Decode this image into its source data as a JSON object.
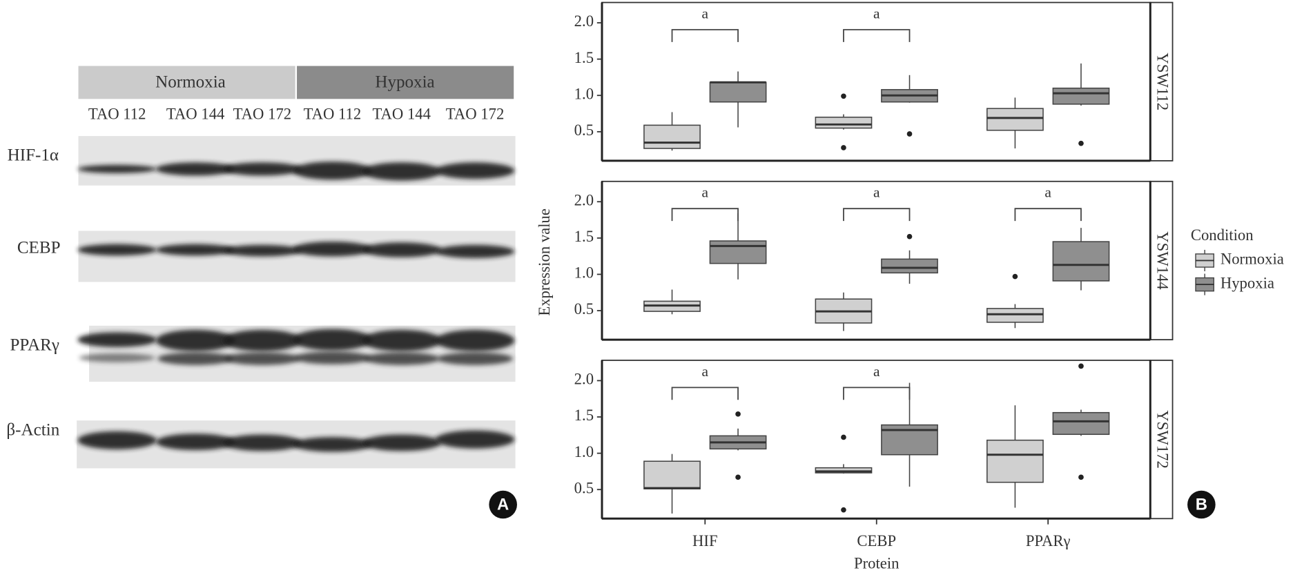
{
  "blot": {
    "groups": [
      "Normoxia",
      "Hypoxia"
    ],
    "lanes": [
      "TAO 112",
      "TAO 144",
      "TAO 172",
      "TAO 112",
      "TAO 144",
      "TAO 172"
    ],
    "proteins": [
      "HIF-1α",
      "CEBP",
      "PPARγ",
      "β-Actin"
    ],
    "panel_label": "A"
  },
  "chart_data": {
    "type": "box",
    "ylabel": "Expression value",
    "xlabel": "Protein",
    "categories": [
      "HIF",
      "CEBP",
      "PPARγ"
    ],
    "legend_title": "Condition",
    "series": [
      {
        "name": "Normoxia",
        "color": "#d0d0d0"
      },
      {
        "name": "Hypoxia",
        "color": "#8f8f8f"
      }
    ],
    "ylim": [
      0.1,
      2.28
    ],
    "yticks": [
      0.5,
      {
        "value": 1,
        "label": "1.0"
      },
      1.5,
      {
        "value": 2,
        "label": "2.0"
      }
    ],
    "panel_label": "B",
    "facets": [
      {
        "label": "YSW112",
        "significance": [
          "a",
          "a",
          null
        ],
        "boxes": [
          [
            {
              "min": 0.24,
              "q1": 0.27,
              "median": 0.35,
              "q3": 0.59,
              "max": 0.77,
              "outliers": []
            },
            {
              "min": 0.56,
              "q1": 0.91,
              "median": 1.18,
              "q3": 1.18,
              "max": 1.33,
              "outliers": []
            }
          ],
          [
            {
              "min": 0.53,
              "q1": 0.55,
              "median": 0.6,
              "q3": 0.7,
              "max": 0.74,
              "outliers": [
                0.99,
                0.28
              ]
            },
            {
              "min": 0.9,
              "q1": 0.91,
              "median": 1.0,
              "q3": 1.08,
              "max": 1.28,
              "outliers": [
                0.47
              ]
            }
          ],
          [
            {
              "min": 0.27,
              "q1": 0.52,
              "median": 0.69,
              "q3": 0.82,
              "max": 0.97,
              "outliers": []
            },
            {
              "min": 0.86,
              "q1": 0.88,
              "median": 1.03,
              "q3": 1.1,
              "max": 1.44,
              "outliers": [
                0.34
              ]
            }
          ]
        ]
      },
      {
        "label": "YSW144",
        "significance": [
          "a",
          "a",
          "a"
        ],
        "boxes": [
          [
            {
              "min": 0.45,
              "q1": 0.49,
              "median": 0.57,
              "q3": 0.63,
              "max": 0.79,
              "outliers": []
            },
            {
              "min": 0.93,
              "q1": 1.15,
              "median": 1.39,
              "q3": 1.46,
              "max": 1.84,
              "outliers": []
            }
          ],
          [
            {
              "min": 0.22,
              "q1": 0.33,
              "median": 0.49,
              "q3": 0.66,
              "max": 0.75,
              "outliers": []
            },
            {
              "min": 0.87,
              "q1": 1.02,
              "median": 1.09,
              "q3": 1.21,
              "max": 1.33,
              "outliers": [
                1.52
              ]
            }
          ],
          [
            {
              "min": 0.26,
              "q1": 0.34,
              "median": 0.45,
              "q3": 0.53,
              "max": 0.59,
              "outliers": [
                0.97
              ]
            },
            {
              "min": 0.78,
              "q1": 0.91,
              "median": 1.13,
              "q3": 1.45,
              "max": 1.64,
              "outliers": []
            }
          ]
        ]
      },
      {
        "label": "YSW172",
        "significance": [
          "a",
          "a",
          null
        ],
        "boxes": [
          [
            {
              "min": 0.17,
              "q1": 0.51,
              "median": 0.52,
              "q3": 0.89,
              "max": 0.99,
              "outliers": []
            },
            {
              "min": 1.04,
              "q1": 1.06,
              "median": 1.15,
              "q3": 1.24,
              "max": 1.34,
              "outliers": [
                1.54,
                0.67
              ]
            }
          ],
          [
            {
              "min": 0.72,
              "q1": 0.73,
              "median": 0.75,
              "q3": 0.8,
              "max": 0.85,
              "outliers": [
                1.22,
                0.22
              ]
            },
            {
              "min": 0.54,
              "q1": 0.98,
              "median": 1.32,
              "q3": 1.39,
              "max": 1.97,
              "outliers": []
            }
          ],
          [
            {
              "min": 0.25,
              "q1": 0.6,
              "median": 0.98,
              "q3": 1.18,
              "max": 1.66,
              "outliers": []
            },
            {
              "min": 1.24,
              "q1": 1.26,
              "median": 1.44,
              "q3": 1.56,
              "max": 1.6,
              "outliers": [
                2.2,
                0.67
              ]
            }
          ]
        ]
      }
    ]
  }
}
